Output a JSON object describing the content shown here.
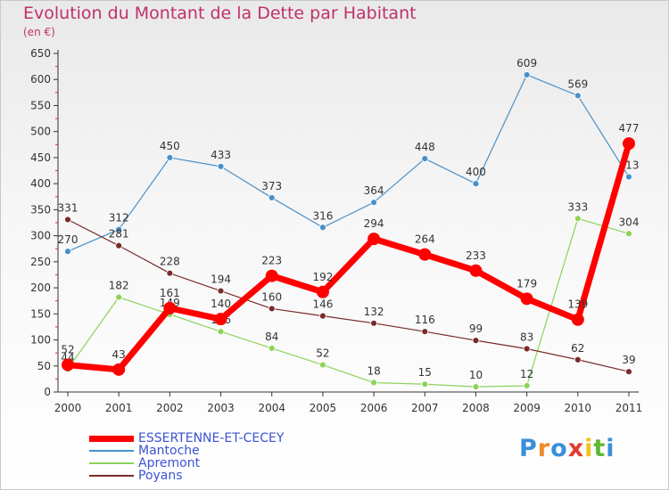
{
  "header": {
    "title": "Evolution du Montant de la Dette par Habitant",
    "subtitle": "(en €)"
  },
  "brand": {
    "text": "Proxiti",
    "colors": [
      "#3a8fd8",
      "#f08a2a",
      "#3a8fd8",
      "#e23b2e",
      "#f2c21b",
      "#5fb832",
      "#3a8fd8"
    ]
  },
  "colors": {
    "title": "#c0306a",
    "legend_text": "#3c53d3",
    "axis": "#333333",
    "tick_minor": "#c0306a"
  },
  "chart_data": {
    "type": "line",
    "title": "Evolution du Montant de la Dette par Habitant",
    "subtitle": "(en €)",
    "xlabel": "",
    "ylabel": "",
    "x": [
      "2000",
      "2001",
      "2002",
      "2003",
      "2004",
      "2005",
      "2006",
      "2007",
      "2008",
      "2009",
      "2010",
      "2011"
    ],
    "ylim": [
      0,
      650
    ],
    "yticks": [
      0,
      50,
      100,
      150,
      200,
      250,
      300,
      350,
      400,
      450,
      500,
      550,
      600,
      650
    ],
    "grid": false,
    "legend_position": "bottom-left",
    "series": [
      {
        "name": "Mantoche",
        "color": "#4a90c8",
        "values": [
          270,
          312,
          450,
          433,
          373,
          316,
          364,
          448,
          400,
          609,
          569,
          413
        ],
        "labels": [
          "270",
          "312",
          "450",
          "433",
          "373",
          "316",
          "364",
          "448",
          "400",
          "609",
          "569",
          "413"
        ]
      },
      {
        "name": "Apremont",
        "color": "#8cd35a",
        "values": [
          44,
          182,
          149,
          116,
          84,
          52,
          18,
          15,
          10,
          12,
          333,
          304
        ],
        "labels": [
          "44",
          "182",
          "149",
          "116",
          "84",
          "52",
          "18",
          "15",
          "10",
          "12",
          "333",
          "304"
        ]
      },
      {
        "name": "Poyans",
        "color": "#7a2b2b",
        "values": [
          331,
          281,
          228,
          194,
          160,
          146,
          132,
          116,
          99,
          83,
          62,
          39
        ],
        "labels": [
          "331",
          "281",
          "228",
          "194",
          "160",
          "146",
          "132",
          "116",
          "99",
          "83",
          "62",
          "39"
        ]
      },
      {
        "name": "ESSERTENNE-ET-CECEY",
        "color": "#ff0000",
        "values": [
          52,
          43,
          161,
          140,
          223,
          192,
          294,
          264,
          233,
          179,
          139,
          477
        ],
        "labels": [
          "52",
          "43",
          "161",
          "140",
          "223",
          "192",
          "294",
          "264",
          "233",
          "179",
          "139",
          "477"
        ]
      }
    ],
    "legend": [
      {
        "name": "ESSERTENNE-ET-CECEY",
        "color": "#ff0000"
      },
      {
        "name": "Mantoche",
        "color": "#4a90c8"
      },
      {
        "name": "Apremont",
        "color": "#8cd35a"
      },
      {
        "name": "Poyans",
        "color": "#7a2b2b"
      }
    ]
  }
}
